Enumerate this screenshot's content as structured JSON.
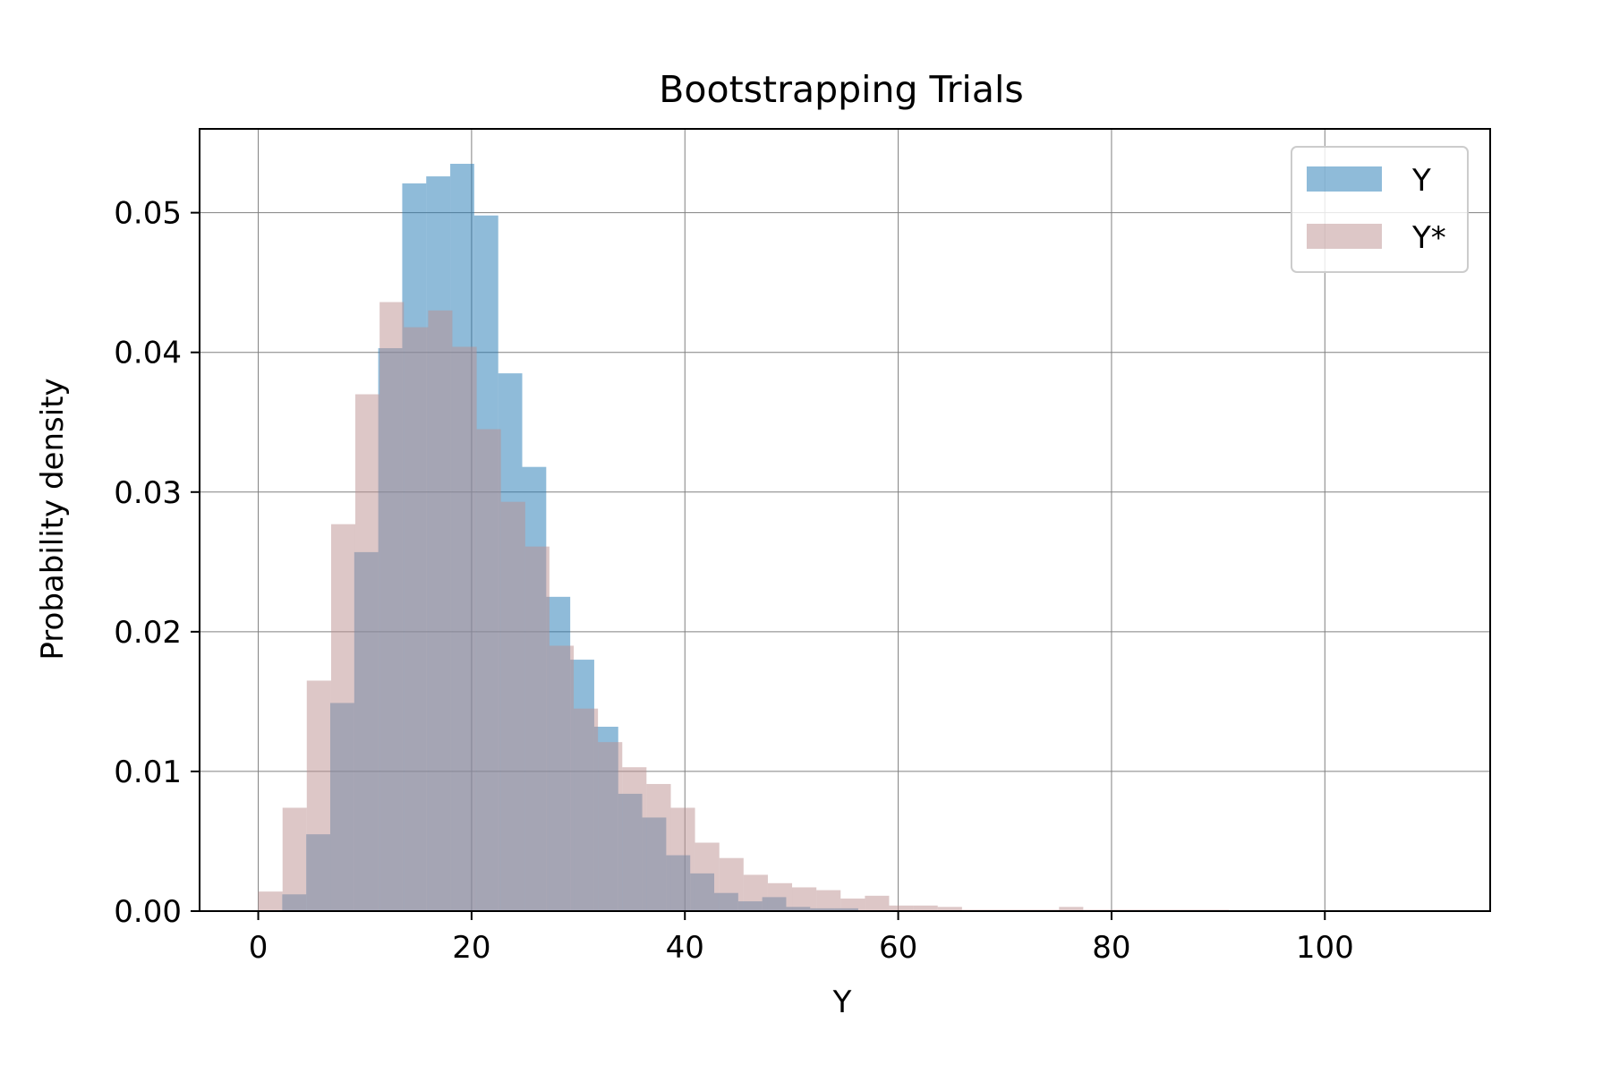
{
  "chart_data": {
    "type": "histogram",
    "title": "Bootstrapping Trials",
    "xlabel": "Y",
    "ylabel": "Probability density",
    "xlim": [
      -5.5,
      115.5
    ],
    "ylim": [
      0,
      0.056
    ],
    "xticks": [
      0,
      20,
      40,
      60,
      80,
      100
    ],
    "yticks": [
      0.0,
      0.01,
      0.02,
      0.03,
      0.04,
      0.05
    ],
    "xtick_labels": [
      "0",
      "20",
      "40",
      "60",
      "80",
      "100"
    ],
    "ytick_labels": [
      "0.00",
      "0.01",
      "0.02",
      "0.03",
      "0.04",
      "0.05"
    ],
    "grid": true,
    "legend_position": "top-right",
    "series": [
      {
        "name": "Y",
        "color": "#1f77b4",
        "opacity": 0.5,
        "bin_edges": [
          2.25,
          4.5,
          6.75,
          9.0,
          11.25,
          13.5,
          15.75,
          18.0,
          20.25,
          22.5,
          24.75,
          27.0,
          29.25,
          31.5,
          33.75,
          36.0,
          38.25,
          40.5,
          42.75,
          45.0,
          47.25,
          49.5,
          51.75,
          54.0,
          56.25
        ],
        "values": [
          0.0012,
          0.0055,
          0.0149,
          0.0257,
          0.0403,
          0.0521,
          0.0526,
          0.0535,
          0.0498,
          0.0385,
          0.0318,
          0.0225,
          0.018,
          0.0132,
          0.0084,
          0.0067,
          0.004,
          0.0027,
          0.0013,
          0.0007,
          0.001,
          0.0003,
          0.0002,
          0.0002
        ]
      },
      {
        "name": "Y*",
        "color": "#bc8f8f",
        "opacity": 0.5,
        "bin_edges": [
          0.0,
          2.28,
          4.55,
          6.83,
          9.1,
          11.38,
          13.65,
          15.93,
          18.2,
          20.48,
          22.75,
          25.03,
          27.3,
          29.58,
          31.85,
          34.13,
          36.4,
          38.68,
          40.95,
          43.23,
          45.5,
          47.78,
          50.05,
          52.33,
          54.6,
          56.88,
          59.15,
          61.43,
          63.7,
          65.98,
          68.25,
          70.53,
          72.8,
          75.08,
          77.35,
          79.63,
          81.9,
          84.18,
          86.45,
          88.73,
          91.0
        ],
        "values": [
          0.0014,
          0.0074,
          0.0165,
          0.0277,
          0.037,
          0.0436,
          0.0418,
          0.043,
          0.0404,
          0.0345,
          0.0293,
          0.0261,
          0.019,
          0.0145,
          0.0121,
          0.0103,
          0.0091,
          0.0074,
          0.0049,
          0.0038,
          0.0026,
          0.002,
          0.0017,
          0.0015,
          0.0009,
          0.0011,
          0.0004,
          0.0004,
          0.0003,
          0.0001,
          0.0001,
          0.0001,
          0.0001,
          0.0003,
          0.0001,
          0.0001,
          0.0001,
          0.0001,
          0.0001,
          0.0001
        ]
      }
    ]
  }
}
